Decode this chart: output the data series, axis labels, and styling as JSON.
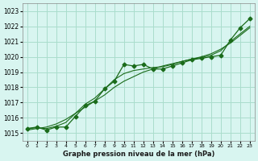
{
  "xlabel": "Graphe pression niveau de la mer (hPa)",
  "bg_color": "#d8f5f0",
  "grid_color": "#aaddcc",
  "line_color": "#1a6b1a",
  "ylim": [
    1014.5,
    1023.5
  ],
  "xlim": [
    -0.5,
    23.5
  ],
  "yticks": [
    1015,
    1016,
    1017,
    1018,
    1019,
    1020,
    1021,
    1022,
    1023
  ],
  "xticks": [
    0,
    1,
    2,
    3,
    4,
    5,
    6,
    7,
    8,
    9,
    10,
    11,
    12,
    13,
    14,
    15,
    16,
    17,
    18,
    19,
    20,
    21,
    22,
    23
  ],
  "x": [
    0,
    1,
    2,
    3,
    4,
    5,
    6,
    7,
    8,
    9,
    10,
    11,
    12,
    13,
    14,
    15,
    16,
    17,
    18,
    19,
    20,
    21,
    22,
    23
  ],
  "y_main": [
    1015.3,
    1015.4,
    1015.2,
    1015.4,
    1015.4,
    1016.1,
    1016.8,
    1017.1,
    1017.9,
    1018.4,
    1019.5,
    1019.4,
    1019.5,
    1019.2,
    1019.2,
    1019.4,
    1019.6,
    1019.8,
    1019.9,
    1020.0,
    1020.1,
    1021.1,
    1021.9,
    1022.5
  ],
  "y_smooth1": [
    1015.3,
    1015.35,
    1015.3,
    1015.45,
    1015.7,
    1016.3,
    1016.9,
    1017.3,
    1017.9,
    1018.5,
    1018.9,
    1019.1,
    1019.2,
    1019.3,
    1019.35,
    1019.5,
    1019.7,
    1019.85,
    1019.95,
    1020.1,
    1020.4,
    1021.0,
    1021.5,
    1022.0
  ],
  "y_smooth2": [
    1015.2,
    1015.3,
    1015.4,
    1015.6,
    1015.9,
    1016.3,
    1016.7,
    1017.1,
    1017.5,
    1018.0,
    1018.4,
    1018.7,
    1019.0,
    1019.2,
    1019.4,
    1019.55,
    1019.7,
    1019.85,
    1020.0,
    1020.2,
    1020.5,
    1020.9,
    1021.4,
    1021.9
  ]
}
